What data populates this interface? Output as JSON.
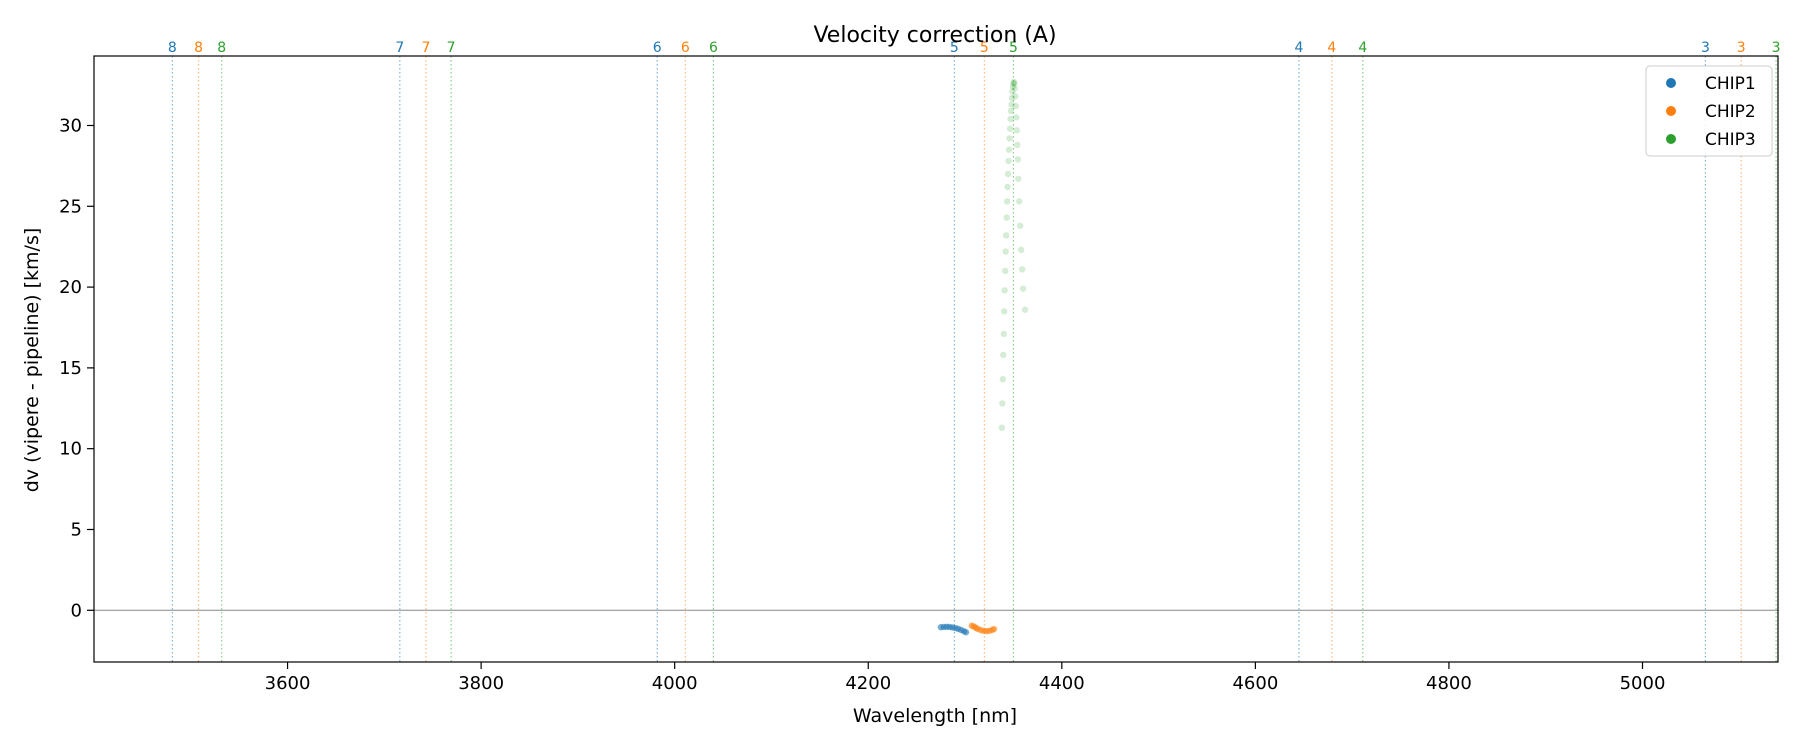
{
  "chart_data": {
    "type": "scatter",
    "title": "Velocity correction (A)",
    "xlabel": "Wavelength [nm]",
    "ylabel": "dv (vipere - pipeline) [km/s]",
    "xlim": [
      3400,
      5140
    ],
    "ylim": [
      -3.2,
      34.3
    ],
    "xticks": [
      3600,
      3800,
      4000,
      4200,
      4400,
      4600,
      4800,
      5000
    ],
    "yticks": [
      0,
      5,
      10,
      15,
      20,
      25,
      30
    ],
    "grid": false,
    "legend_position": "top-right",
    "zero_line": 0,
    "order_lines": [
      {
        "label": "8",
        "x": 3481,
        "series": "CHIP1"
      },
      {
        "label": "8",
        "x": 3508,
        "series": "CHIP2"
      },
      {
        "label": "8",
        "x": 3532,
        "series": "CHIP3"
      },
      {
        "label": "7",
        "x": 3716,
        "series": "CHIP1"
      },
      {
        "label": "7",
        "x": 3743,
        "series": "CHIP2"
      },
      {
        "label": "7",
        "x": 3769,
        "series": "CHIP3"
      },
      {
        "label": "6",
        "x": 3982,
        "series": "CHIP1"
      },
      {
        "label": "6",
        "x": 4011,
        "series": "CHIP2"
      },
      {
        "label": "6",
        "x": 4040,
        "series": "CHIP3"
      },
      {
        "label": "5",
        "x": 4289,
        "series": "CHIP1"
      },
      {
        "label": "5",
        "x": 4320,
        "series": "CHIP2"
      },
      {
        "label": "5",
        "x": 4350,
        "series": "CHIP3"
      },
      {
        "label": "4",
        "x": 4645,
        "series": "CHIP1"
      },
      {
        "label": "4",
        "x": 4679,
        "series": "CHIP2"
      },
      {
        "label": "4",
        "x": 4711,
        "series": "CHIP3"
      },
      {
        "label": "3",
        "x": 5065,
        "series": "CHIP1"
      },
      {
        "label": "3",
        "x": 5102,
        "series": "CHIP2"
      },
      {
        "label": "3",
        "x": 5138,
        "series": "CHIP3"
      }
    ],
    "series": [
      {
        "name": "CHIP1",
        "color": "#1f77b4",
        "points": [
          [
            4275,
            -1.05
          ],
          [
            4278,
            -1.03
          ],
          [
            4281,
            -1.02
          ],
          [
            4284,
            -1.03
          ],
          [
            4287,
            -1.06
          ],
          [
            4290,
            -1.1
          ],
          [
            4293,
            -1.15
          ],
          [
            4296,
            -1.22
          ],
          [
            4299,
            -1.3
          ],
          [
            4301,
            -1.36
          ]
        ]
      },
      {
        "name": "CHIP2",
        "color": "#ff7f0e",
        "points": [
          [
            4307,
            -0.95
          ],
          [
            4309,
            -1.0
          ],
          [
            4311,
            -1.08
          ],
          [
            4313,
            -1.15
          ],
          [
            4316,
            -1.22
          ],
          [
            4319,
            -1.27
          ],
          [
            4322,
            -1.29
          ],
          [
            4325,
            -1.27
          ],
          [
            4328,
            -1.22
          ],
          [
            4330,
            -1.16
          ]
        ]
      },
      {
        "name": "CHIP3",
        "color": "#2ca02c",
        "points": [
          [
            4338,
            11.3
          ],
          [
            4338.5,
            12.8
          ],
          [
            4339,
            14.3
          ],
          [
            4339.5,
            15.8
          ],
          [
            4340,
            17.1
          ],
          [
            4340.5,
            18.5
          ],
          [
            4341,
            19.8
          ],
          [
            4341.5,
            21.0
          ],
          [
            4342,
            22.2
          ],
          [
            4342.5,
            23.2
          ],
          [
            4343,
            24.3
          ],
          [
            4343.5,
            25.3
          ],
          [
            4344,
            26.2
          ],
          [
            4344.5,
            27.0
          ],
          [
            4345,
            27.8
          ],
          [
            4345.5,
            28.5
          ],
          [
            4346,
            29.2
          ],
          [
            4346.5,
            29.8
          ],
          [
            4347,
            30.4
          ],
          [
            4347.5,
            30.9
          ],
          [
            4348,
            31.3
          ],
          [
            4348.5,
            31.7
          ],
          [
            4349,
            32.1
          ],
          [
            4349.5,
            32.4
          ],
          [
            4350,
            32.6
          ],
          [
            4350.5,
            32.7
          ],
          [
            4351,
            32.6
          ],
          [
            4351.5,
            32.3
          ],
          [
            4352,
            31.8
          ],
          [
            4352.5,
            31.2
          ],
          [
            4353,
            30.5
          ],
          [
            4353.5,
            29.7
          ],
          [
            4354,
            28.8
          ],
          [
            4354.5,
            27.9
          ],
          [
            4355,
            26.7
          ],
          [
            4356,
            25.3
          ],
          [
            4357,
            23.8
          ],
          [
            4358,
            22.3
          ],
          [
            4359,
            21.1
          ],
          [
            4360,
            19.9
          ],
          [
            4362,
            18.6
          ]
        ]
      }
    ]
  }
}
